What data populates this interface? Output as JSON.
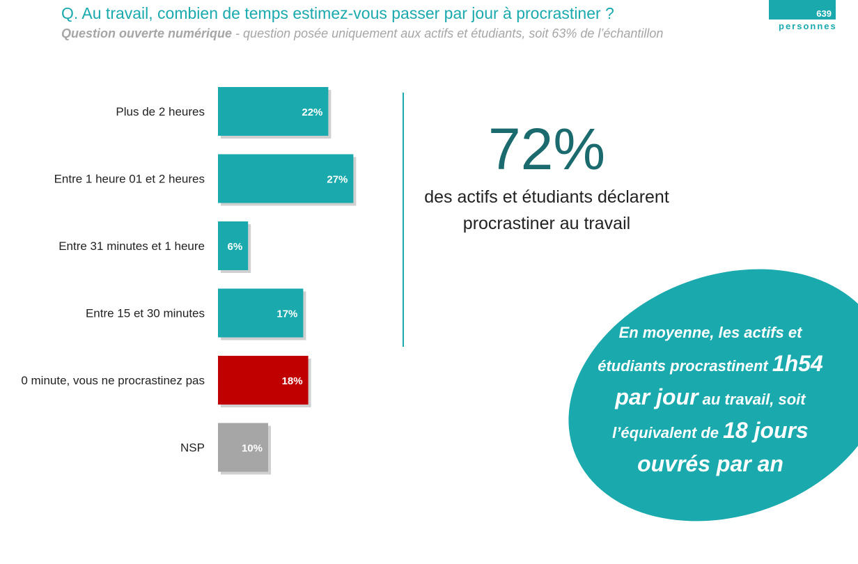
{
  "header": {
    "title": "Q. Au travail, combien de temps estimez-vous passer par jour à procrastiner ?",
    "subtitle_bold": "Question ouverte numérique",
    "subtitle_rest": " - question posée uniquement aux actifs et étudiants, soit 63% de l’échantillon"
  },
  "badge": {
    "count": "639",
    "label": "personnes"
  },
  "colors": {
    "teal": "#1aa9ad",
    "red": "#c00000",
    "gray": "#a6a6a6",
    "dark_teal": "#1b6a6d"
  },
  "chart_data": {
    "type": "bar",
    "orientation": "horizontal",
    "categories": [
      "Plus de 2 heures",
      "Entre 1 heure 01 et 2 heures",
      "Entre 31 minutes et 1 heure",
      "Entre 15 et 30 minutes",
      "0 minute, vous ne procrastinez pas",
      "NSP"
    ],
    "values": [
      22,
      27,
      6,
      17,
      18,
      10
    ],
    "value_labels": [
      "22%",
      "27%",
      "6%",
      "17%",
      "18%",
      "10%"
    ],
    "bar_colors": [
      "#1aa9ad",
      "#1aa9ad",
      "#1aa9ad",
      "#1aa9ad",
      "#c00000",
      "#a6a6a6"
    ],
    "xlim": [
      0,
      100
    ],
    "grid": false
  },
  "highlight": {
    "percent": "72%",
    "line1": "des actifs et étudiants déclarent",
    "line2": "procrastiner au travail"
  },
  "callout": {
    "l1": "En moyenne, les actifs et",
    "l2a": "étudiants procrastinent ",
    "l2b": "1h54",
    "l3a": "par jour",
    "l3b": " au travail, soit",
    "l4a": "l’équivalent de ",
    "l4b": "18 jours",
    "l5": "ouvrés par an"
  }
}
